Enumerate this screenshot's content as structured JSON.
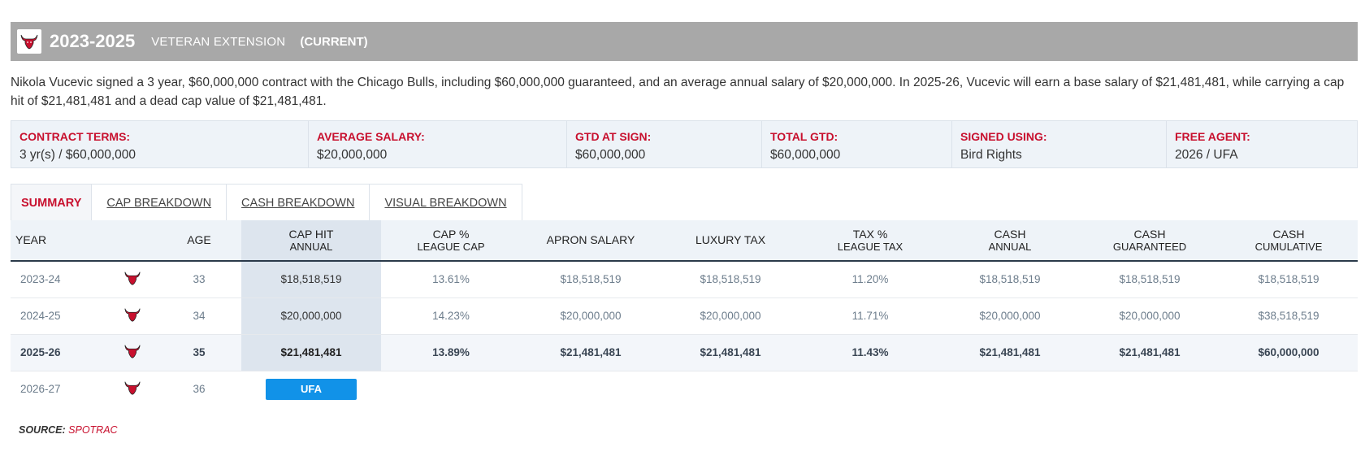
{
  "header": {
    "years": "2023-2025",
    "type": "VETERAN EXTENSION",
    "status": "(CURRENT)",
    "logo_icon": "bull-logo-icon"
  },
  "summary": "Nikola Vucevic signed a 3 year, $60,000,000 contract with the Chicago Bulls, including $60,000,000 guaranteed, and an average annual salary of $20,000,000. In 2025-26, Vucevic will earn a base salary of $21,481,481, while carrying a cap hit of $21,481,481 and a dead cap value of $21,481,481.",
  "terms": [
    {
      "label": "CONTRACT TERMS:",
      "value": "3 yr(s) / $60,000,000"
    },
    {
      "label": "AVERAGE SALARY:",
      "value": "$20,000,000"
    },
    {
      "label": "GTD AT SIGN:",
      "value": "$60,000,000"
    },
    {
      "label": "TOTAL GTD:",
      "value": "$60,000,000"
    },
    {
      "label": "SIGNED USING:",
      "value": "Bird Rights"
    },
    {
      "label": "FREE AGENT:",
      "value": "2026 / UFA"
    }
  ],
  "tabs": [
    "SUMMARY",
    "CAP BREAKDOWN",
    "CASH BREAKDOWN",
    "VISUAL BREAKDOWN"
  ],
  "table": {
    "headers": {
      "year": "YEAR",
      "age": "AGE",
      "cap_hit_1": "CAP HIT",
      "cap_hit_2": "ANNUAL",
      "cap_pct_1": "CAP %",
      "cap_pct_2": "LEAGUE CAP",
      "apron": "APRON SALARY",
      "lux": "LUXURY TAX",
      "tax_pct_1": "TAX %",
      "tax_pct_2": "LEAGUE TAX",
      "cash_annual_1": "CASH",
      "cash_annual_2": "ANNUAL",
      "cash_gtd_1": "CASH",
      "cash_gtd_2": "GUARANTEED",
      "cash_cum_1": "CASH",
      "cash_cum_2": "CUMULATIVE"
    },
    "rows": [
      {
        "year": "2023-24",
        "age": "33",
        "cap_hit": "$18,518,519",
        "cap_pct": "13.61%",
        "apron": "$18,518,519",
        "lux": "$18,518,519",
        "tax_pct": "11.20%",
        "cash_annual": "$18,518,519",
        "cash_gtd": "$18,518,519",
        "cash_cum": "$18,518,519"
      },
      {
        "year": "2024-25",
        "age": "34",
        "cap_hit": "$20,000,000",
        "cap_pct": "14.23%",
        "apron": "$20,000,000",
        "lux": "$20,000,000",
        "tax_pct": "11.71%",
        "cash_annual": "$20,000,000",
        "cash_gtd": "$20,000,000",
        "cash_cum": "$38,518,519"
      },
      {
        "year": "2025-26",
        "age": "35",
        "cap_hit": "$21,481,481",
        "cap_pct": "13.89%",
        "apron": "$21,481,481",
        "lux": "$21,481,481",
        "tax_pct": "11.43%",
        "cash_annual": "$21,481,481",
        "cash_gtd": "$21,481,481",
        "cash_cum": "$60,000,000"
      },
      {
        "year": "2026-27",
        "age": "36",
        "ufa": "UFA"
      }
    ]
  },
  "source": {
    "label": "SOURCE:",
    "link": "SPOTRAC"
  },
  "colors": {
    "accent": "#c8102e",
    "header_bg": "#a8a8a8",
    "ufa_badge": "#1192e8"
  }
}
